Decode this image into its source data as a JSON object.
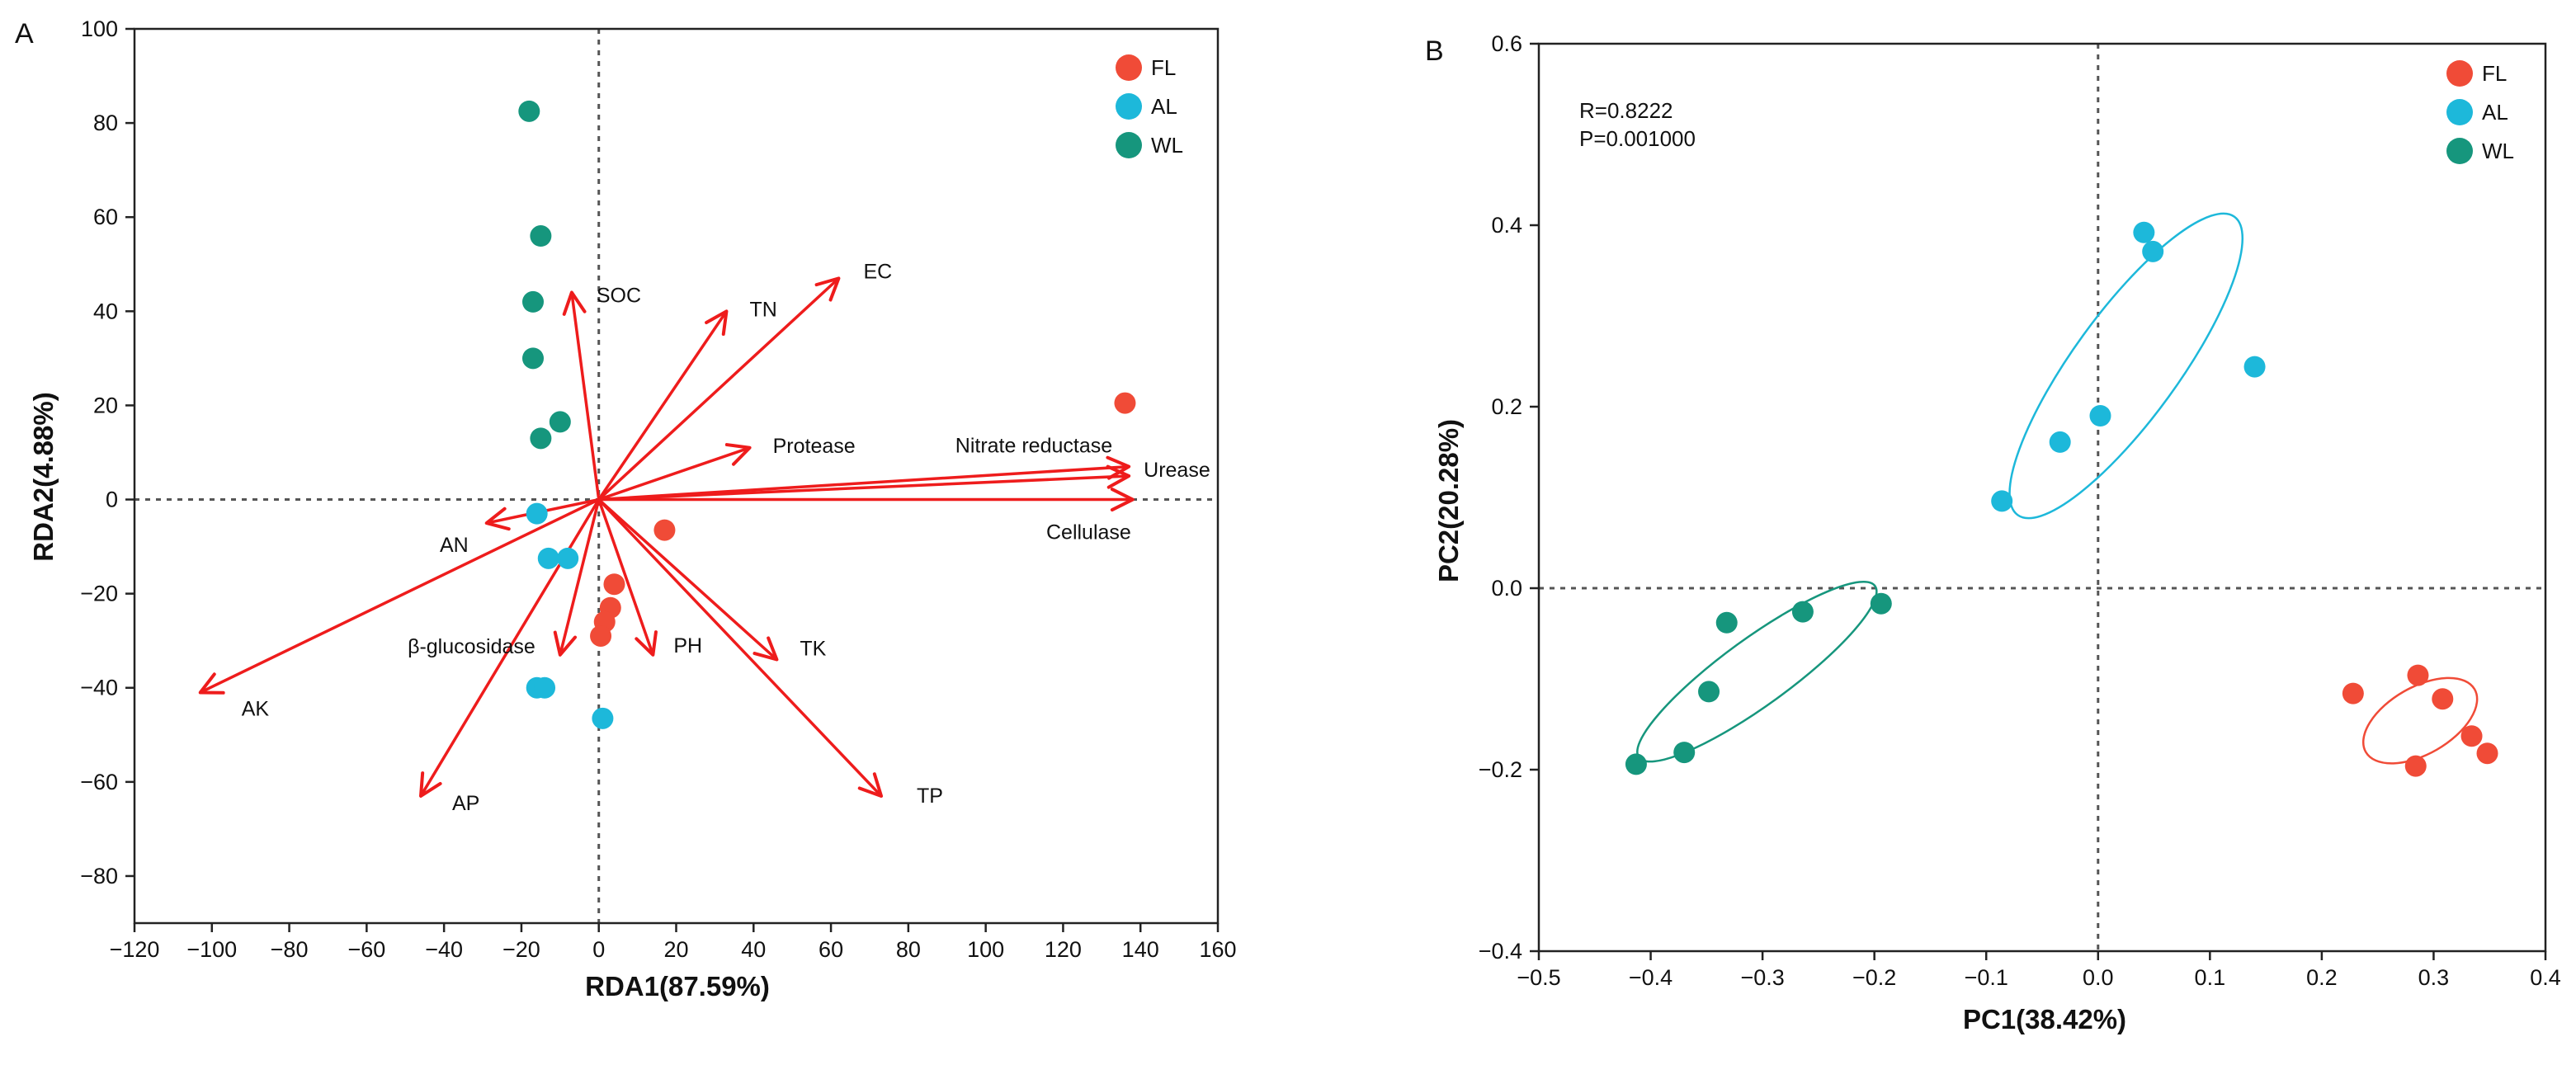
{
  "chart_data": [
    {
      "panel": "A",
      "type": "scatter",
      "subtype": "RDA biplot",
      "xlabel": "RDA1(87.59%)",
      "ylabel": "RDA2(4.88%)",
      "xlim": [
        -120,
        160
      ],
      "ylim": [
        -90,
        100
      ],
      "xticks": [
        -120,
        -100,
        -80,
        -60,
        -40,
        -20,
        0,
        20,
        40,
        60,
        80,
        100,
        120,
        140,
        160
      ],
      "yticks": [
        -80,
        -60,
        -40,
        -20,
        0,
        20,
        40,
        60,
        80,
        100
      ],
      "reference_lines": {
        "x": 0,
        "y": 0
      },
      "legend": [
        "FL",
        "AL",
        "WL"
      ],
      "legend_position": "top-right",
      "series": [
        {
          "name": "FL",
          "color": "#F04B37",
          "points": [
            [
              136,
              20.5
            ],
            [
              17,
              -6.5
            ],
            [
              4,
              -18
            ],
            [
              3,
              -23
            ],
            [
              1.5,
              -26
            ],
            [
              0.5,
              -29
            ]
          ]
        },
        {
          "name": "AL",
          "color": "#1DB8DA",
          "points": [
            [
              -16,
              -3
            ],
            [
              -13,
              -12.5
            ],
            [
              -8,
              -12.5
            ],
            [
              -16,
              -40
            ],
            [
              -14,
              -40
            ],
            [
              1,
              -46.5
            ]
          ]
        },
        {
          "name": "WL",
          "color": "#16967D",
          "points": [
            [
              -18,
              82.5
            ],
            [
              -15,
              56
            ],
            [
              -17,
              42
            ],
            [
              -17,
              30
            ],
            [
              -15,
              13
            ],
            [
              -10,
              16.5
            ]
          ]
        }
      ],
      "vectors": [
        {
          "name": "SOC",
          "end": [
            -7,
            44
          ]
        },
        {
          "name": "TN",
          "end": [
            33,
            40
          ]
        },
        {
          "name": "EC",
          "end": [
            62,
            47
          ]
        },
        {
          "name": "Protease",
          "end": [
            39,
            11
          ]
        },
        {
          "name": "Nitrate reductase",
          "end": [
            137,
            7
          ]
        },
        {
          "name": "Urease",
          "end": [
            137,
            5
          ]
        },
        {
          "name": "Cellulase",
          "end": [
            138,
            0
          ]
        },
        {
          "name": "AN",
          "end": [
            -29,
            -5
          ]
        },
        {
          "name": "AK",
          "end": [
            -103,
            -41
          ]
        },
        {
          "name": "AP",
          "end": [
            -46,
            -63
          ]
        },
        {
          "name": "β-glucosidase",
          "end": [
            -10,
            -33
          ]
        },
        {
          "name": "PH",
          "end": [
            14,
            -33
          ]
        },
        {
          "name": "TK",
          "end": [
            46,
            -34
          ]
        },
        {
          "name": "TP",
          "end": [
            73,
            -63
          ]
        }
      ]
    },
    {
      "panel": "B",
      "type": "scatter",
      "subtype": "PCoA",
      "xlabel": "PC1(38.42%)",
      "ylabel": "PC2(20.28%)",
      "xlim": [
        -0.5,
        0.4
      ],
      "ylim": [
        -0.4,
        0.6
      ],
      "xticks": [
        -0.5,
        -0.4,
        -0.3,
        -0.2,
        -0.1,
        0,
        0.1,
        0.2,
        0.3,
        0.4
      ],
      "xtick_labels": [
        "−0.5",
        "−0.4",
        "−0.3",
        "−0.2",
        "−0.1",
        "0.0",
        "0.1",
        "0.2",
        "0.3",
        "0.4"
      ],
      "yticks": [
        -0.4,
        -0.2,
        0,
        0.2,
        0.4,
        0.6
      ],
      "ytick_labels": [
        "−0.4",
        "−0.2",
        "0.0",
        "0.2",
        "0.4",
        "0.6"
      ],
      "reference_lines": {
        "x": 0,
        "y": 0
      },
      "legend": [
        "FL",
        "AL",
        "WL"
      ],
      "legend_position": "top-right",
      "stats": {
        "r": "R=0.8222",
        "p": "P=0.001000"
      },
      "series": [
        {
          "name": "FL",
          "color": "#F04B37",
          "points": [
            [
              0.228,
              -0.116
            ],
            [
              0.286,
              -0.096
            ],
            [
              0.308,
              -0.122
            ],
            [
              0.334,
              -0.163
            ],
            [
              0.348,
              -0.182
            ],
            [
              0.284,
              -0.196
            ]
          ],
          "ellipse": {
            "center": [
              0.288,
              -0.146
            ],
            "rx": 0.062,
            "ry": 0.033,
            "angle_deg": -30
          }
        },
        {
          "name": "AL",
          "color": "#1DB8DA",
          "points": [
            [
              0.041,
              0.392
            ],
            [
              0.049,
              0.371
            ],
            [
              0.14,
              0.244
            ],
            [
              0.002,
              0.19
            ],
            [
              -0.034,
              0.161
            ],
            [
              -0.086,
              0.096
            ]
          ],
          "ellipse": {
            "center": [
              0.025,
              0.245
            ],
            "rx": 0.182,
            "ry": 0.052,
            "angle_deg": -54
          }
        },
        {
          "name": "WL",
          "color": "#16967D",
          "points": [
            [
              -0.194,
              -0.017
            ],
            [
              -0.264,
              -0.026
            ],
            [
              -0.332,
              -0.038
            ],
            [
              -0.348,
              -0.114
            ],
            [
              -0.37,
              -0.181
            ],
            [
              -0.413,
              -0.194
            ]
          ],
          "ellipse": {
            "center": [
              -0.305,
              -0.092
            ],
            "rx": 0.144,
            "ry": 0.033,
            "angle_deg": -36
          }
        }
      ]
    }
  ],
  "panel_labels": {
    "a": "A",
    "b": "B"
  }
}
